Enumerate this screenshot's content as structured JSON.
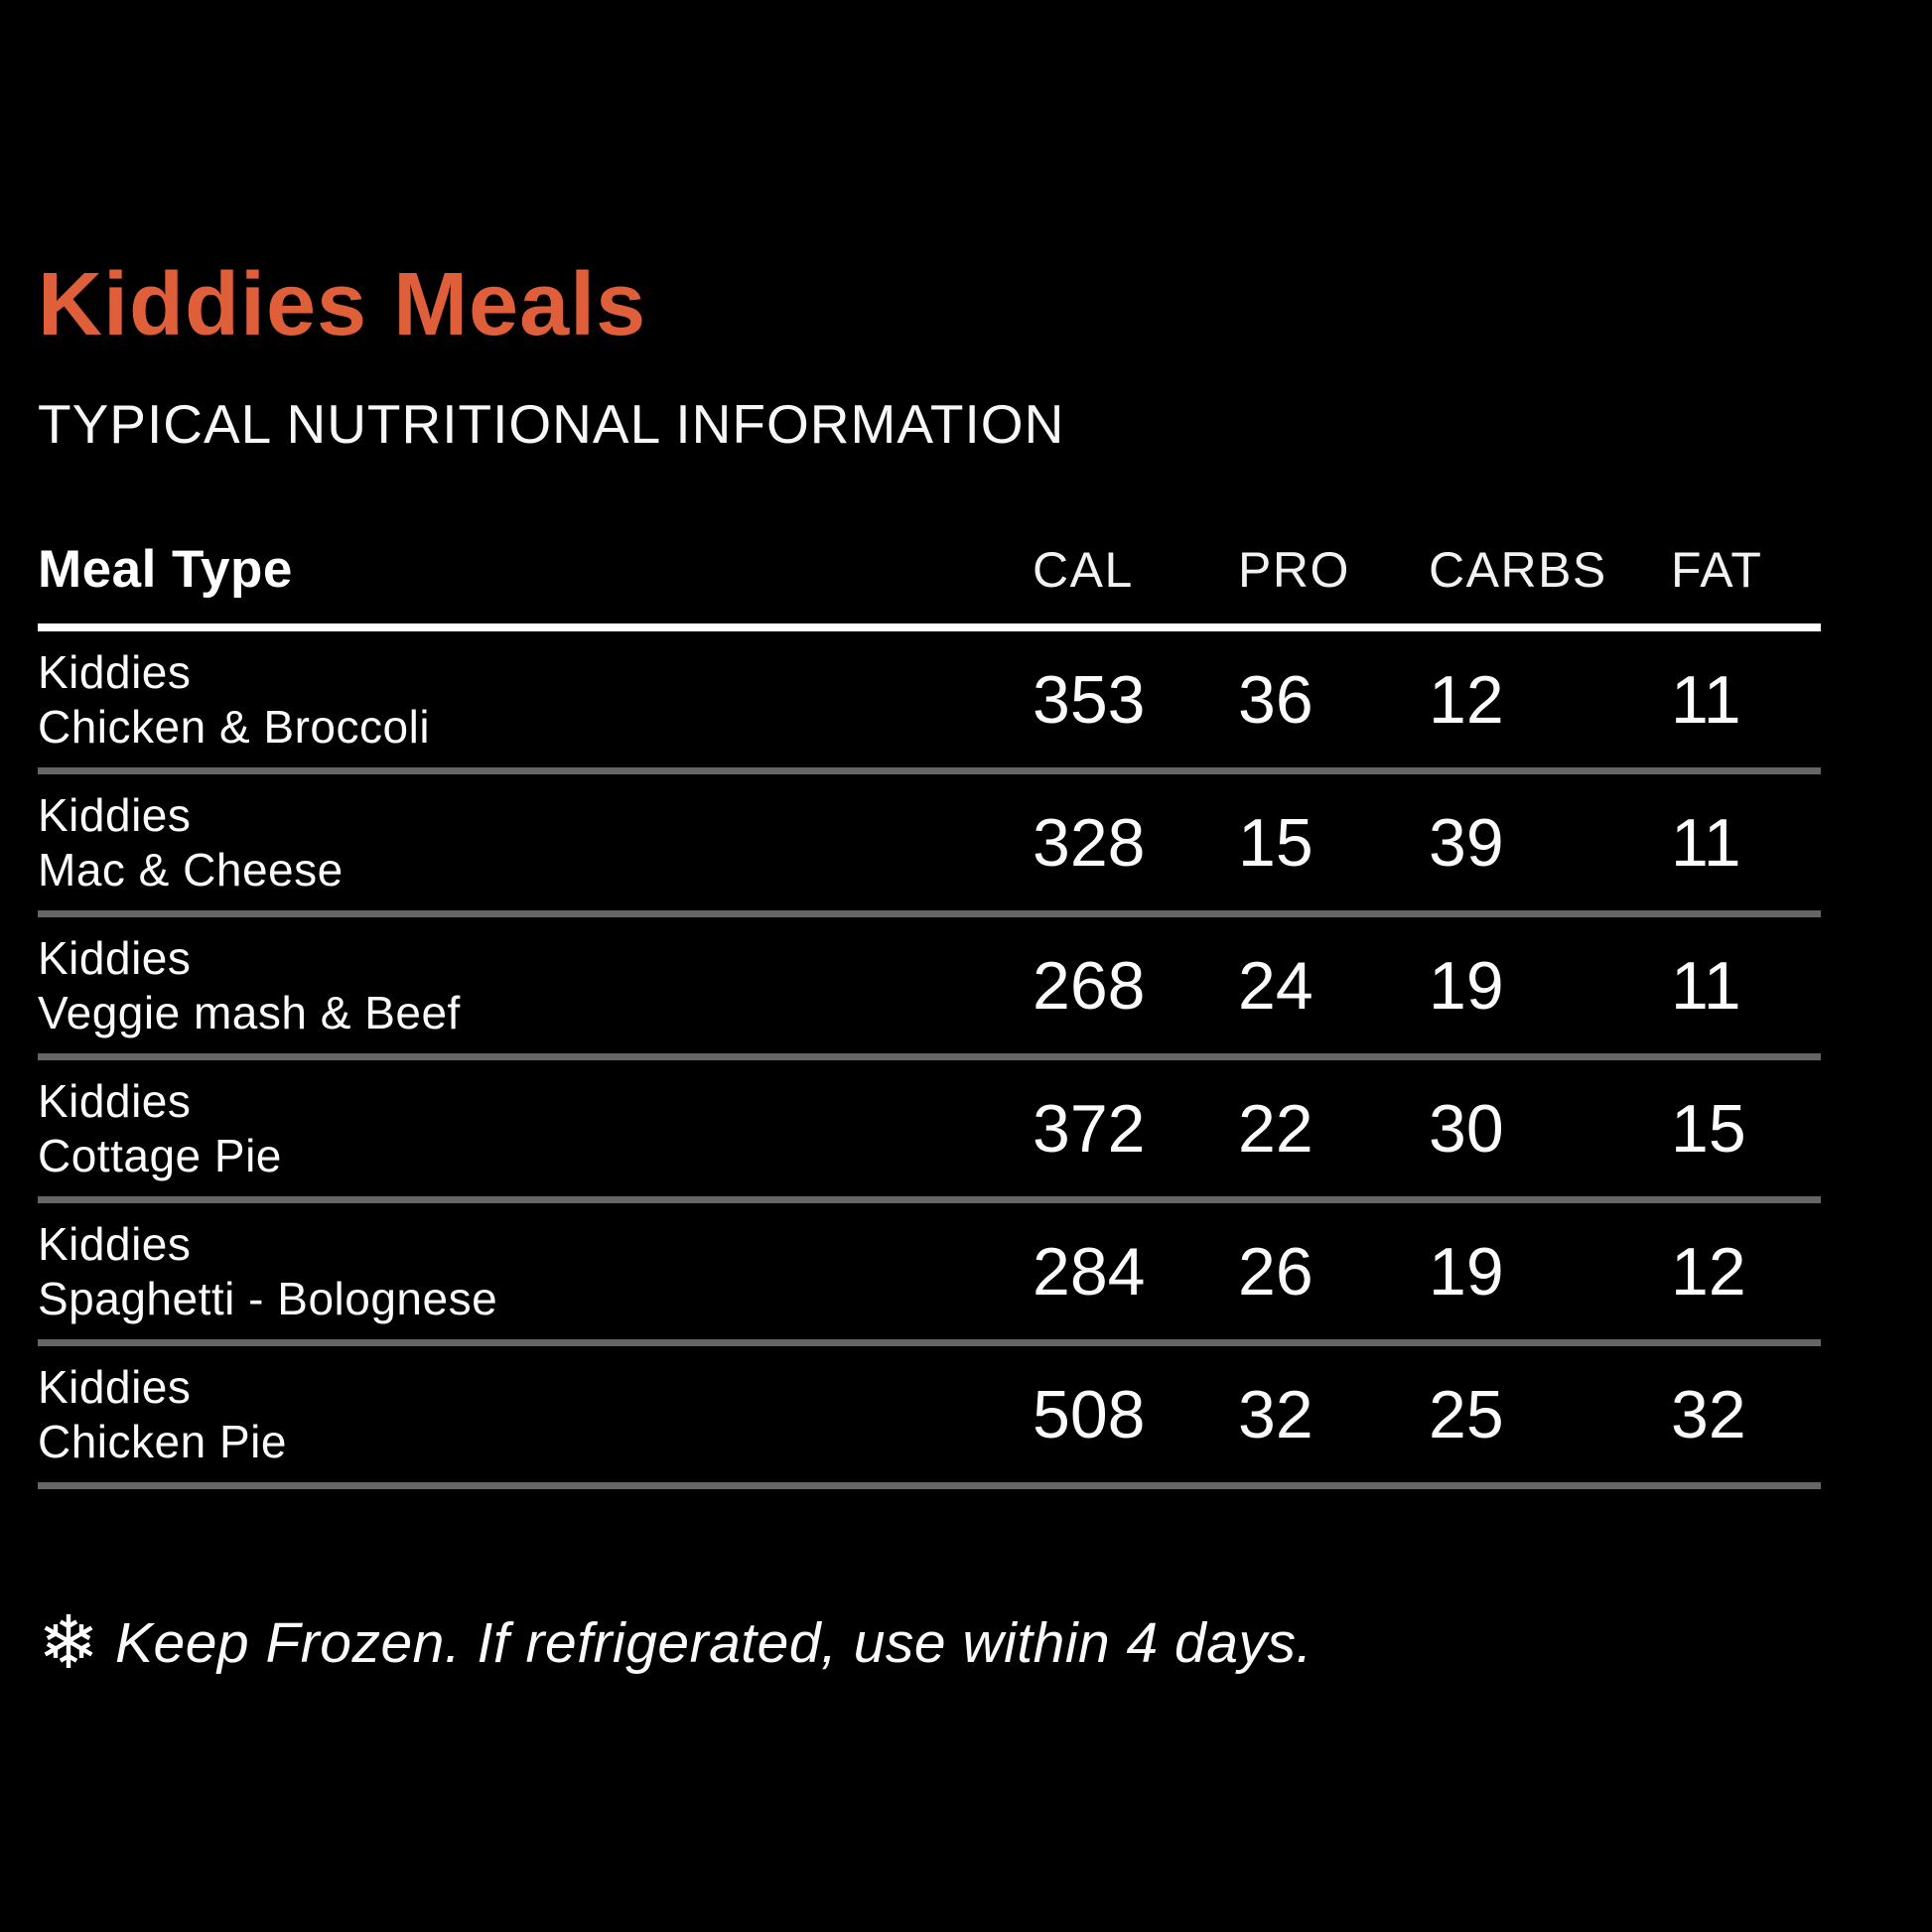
{
  "header": {
    "title": "Kiddies Meals",
    "subtitle": "TYPICAL NUTRITIONAL INFORMATION"
  },
  "table": {
    "columns": [
      "Meal Type",
      "CAL",
      "PRO",
      "CARBS",
      "FAT"
    ],
    "rows": [
      {
        "line1": "Kiddies",
        "line2": "Chicken & Broccoli",
        "cal": "353",
        "pro": "36",
        "carbs": "12",
        "fat": "11"
      },
      {
        "line1": "Kiddies",
        "line2": "Mac & Cheese",
        "cal": "328",
        "pro": "15",
        "carbs": "39",
        "fat": "11"
      },
      {
        "line1": "Kiddies",
        "line2": "Veggie mash & Beef",
        "cal": "268",
        "pro": "24",
        "carbs": "19",
        "fat": "11"
      },
      {
        "line1": "Kiddies",
        "line2": "Cottage Pie",
        "cal": "372",
        "pro": "22",
        "carbs": "30",
        "fat": "15"
      },
      {
        "line1": "Kiddies",
        "line2": "Spaghetti - Bolognese",
        "cal": "284",
        "pro": "26",
        "carbs": "19",
        "fat": "12"
      },
      {
        "line1": "Kiddies",
        "line2": "Chicken Pie",
        "cal": "508",
        "pro": "32",
        "carbs": "25",
        "fat": "32"
      }
    ]
  },
  "footer": {
    "snowflake_icon": "❄",
    "text": "Keep Frozen. If refrigerated, use within 4 days."
  },
  "colors": {
    "background": "#000000",
    "accent": "#DF5F3B",
    "text": "#FFFFFF",
    "separator": "#666666"
  }
}
